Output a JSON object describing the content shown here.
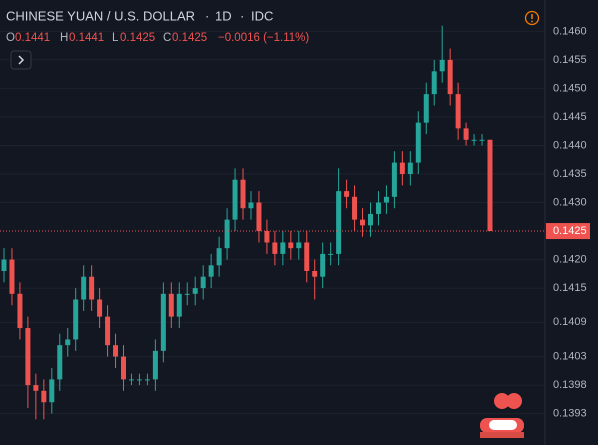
{
  "chart_data": {
    "type": "candlestick",
    "title": "CHINESE YUAN / U.S. DOLLAR",
    "interval": "1D",
    "source": "IDC",
    "legend": {
      "o_label": "O",
      "open": 0.1441,
      "h_label": "H",
      "high": 0.1441,
      "l_label": "L",
      "low": 0.1425,
      "c_label": "C",
      "close": 0.1425,
      "change": "−0.0016 (−1.11%)"
    },
    "up_color": "#26a69a",
    "down_color": "#ef5350",
    "ylim": [
      0.13875,
      0.14655
    ],
    "yticks": [
      {
        "value": 0.146,
        "label": "0.1460"
      },
      0.1455,
      {
        "value": 0.145,
        "label": "0.1450"
      },
      0.1445,
      {
        "value": 0.144,
        "label": "0.1440"
      },
      0.1435,
      {
        "value": 0.143,
        "label": "0.1430"
      },
      {
        "value": 0.142,
        "label": "0.1420"
      },
      0.1415,
      0.1409,
      0.1403,
      0.1398,
      0.1393
    ],
    "grid": true,
    "open": [
      0.1418,
      0.142,
      0.1414,
      0.1408,
      0.1398,
      0.1397,
      0.1395,
      0.1399,
      0.1405,
      0.1406,
      0.1413,
      0.1417,
      0.1413,
      0.141,
      0.1405,
      0.1403,
      0.1399,
      0.1399,
      0.1399,
      0.1399,
      0.1404,
      0.1414,
      0.141,
      0.1414,
      0.1414,
      0.1415,
      0.1417,
      0.1419,
      0.1422,
      0.1427,
      0.1434,
      0.1429,
      0.143,
      0.1425,
      0.1423,
      0.1421,
      0.1423,
      0.1422,
      0.1423,
      0.1418,
      0.1417,
      0.1421,
      0.1421,
      0.1432,
      0.1431,
      0.1427,
      0.1426,
      0.1428,
      0.143,
      0.1431,
      0.1437,
      0.1435,
      0.1437,
      0.1444,
      0.1449,
      0.1453,
      0.1455,
      0.1449,
      0.1443,
      0.1441,
      0.1441,
      0.1441
    ],
    "high": [
      0.1422,
      0.1422,
      0.1416,
      0.141,
      0.14,
      0.1399,
      0.1401,
      0.1407,
      0.1408,
      0.1415,
      0.1419,
      0.1419,
      0.1415,
      0.1412,
      0.1407,
      0.1405,
      0.14,
      0.14,
      0.14,
      0.1406,
      0.1416,
      0.1416,
      0.1416,
      0.1416,
      0.1417,
      0.1419,
      0.1421,
      0.1424,
      0.1429,
      0.1436,
      0.1436,
      0.1432,
      0.1432,
      0.1427,
      0.1425,
      0.1425,
      0.1425,
      0.1425,
      0.1425,
      0.142,
      0.1423,
      0.1423,
      0.1436,
      0.1434,
      0.1433,
      0.1429,
      0.143,
      0.1432,
      0.1433,
      0.1439,
      0.1439,
      0.1439,
      0.1446,
      0.1451,
      0.1455,
      0.1461,
      0.1457,
      0.1451,
      0.1444,
      0.1442,
      0.1442,
      0.1441
    ],
    "low": [
      0.1416,
      0.1412,
      0.1406,
      0.1394,
      0.1392,
      0.1392,
      0.1393,
      0.1397,
      0.1403,
      0.1404,
      0.1411,
      0.1411,
      0.1408,
      0.1403,
      0.1401,
      0.1397,
      0.1398,
      0.1398,
      0.1398,
      0.1397,
      0.1402,
      0.1408,
      0.1408,
      0.1412,
      0.1412,
      0.1413,
      0.1415,
      0.1417,
      0.142,
      0.1425,
      0.1427,
      0.1427,
      0.1423,
      0.1421,
      0.1419,
      0.1419,
      0.142,
      0.142,
      0.1416,
      0.1413,
      0.1415,
      0.1419,
      0.1419,
      0.1429,
      0.1425,
      0.1424,
      0.1424,
      0.1426,
      0.1428,
      0.1429,
      0.1433,
      0.1433,
      0.1435,
      0.1442,
      0.1447,
      0.1451,
      0.1447,
      0.1441,
      0.144,
      0.144,
      0.144,
      0.1425
    ],
    "close": [
      0.142,
      0.1414,
      0.1408,
      0.1398,
      0.1397,
      0.1395,
      0.1399,
      0.1405,
      0.1406,
      0.1413,
      0.1417,
      0.1413,
      0.141,
      0.1405,
      0.1403,
      0.1399,
      0.1399,
      0.1399,
      0.1399,
      0.1404,
      0.1414,
      0.141,
      0.1414,
      0.1414,
      0.1415,
      0.1417,
      0.1419,
      0.1422,
      0.1427,
      0.1434,
      0.1429,
      0.143,
      0.1425,
      0.1423,
      0.1421,
      0.1423,
      0.1422,
      0.1423,
      0.1418,
      0.1417,
      0.1421,
      0.1421,
      0.1432,
      0.1431,
      0.1427,
      0.1426,
      0.1428,
      0.143,
      0.1431,
      0.1437,
      0.1435,
      0.1437,
      0.1444,
      0.1449,
      0.1453,
      0.1455,
      0.1449,
      0.1443,
      0.1441,
      0.1441,
      0.1441,
      0.1425
    ]
  }
}
